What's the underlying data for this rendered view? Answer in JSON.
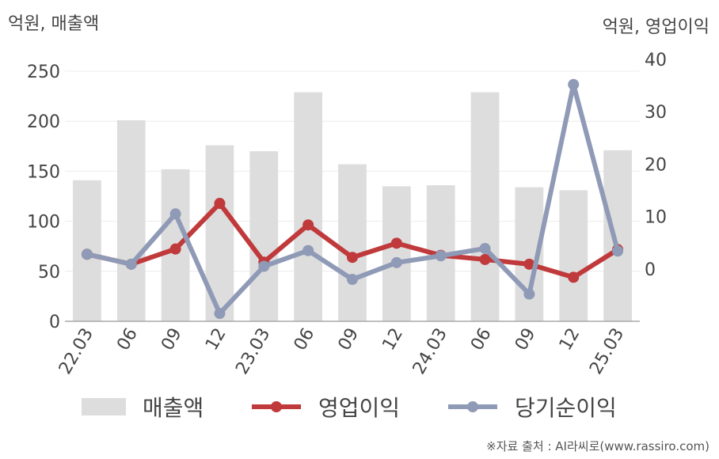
{
  "header": {
    "left_unit": "억원, 매출액",
    "right_unit": "억원, 영업이익"
  },
  "footer": {
    "source": "※자료 출처 : AI라씨로(www.rassiro.com)"
  },
  "colors": {
    "bar": "#dddddd",
    "operating": "#c0393b",
    "net": "#8f9ab6",
    "axis": "#aaaaaa",
    "grid": "#ececec"
  },
  "chart_data": {
    "type": "bar",
    "categories": [
      "22.03",
      "06",
      "09",
      "12",
      "23.03",
      "06",
      "09",
      "12",
      "24.03",
      "06",
      "09",
      "12",
      "25.03"
    ],
    "ylim_left": [
      0,
      250
    ],
    "yticks_left": [
      0,
      50,
      100,
      150,
      200,
      250
    ],
    "ylim_right": [
      -10,
      40
    ],
    "yticks_right": [
      0,
      10,
      20,
      30,
      40
    ],
    "grid": true,
    "legend_position": "bottom",
    "series": [
      {
        "name": "매출액",
        "type": "bar",
        "axis": "left",
        "values": [
          141,
          201,
          152,
          176,
          170,
          229,
          157,
          135,
          136,
          229,
          134,
          131,
          171
        ]
      },
      {
        "name": "영업이익",
        "type": "line",
        "axis": "right",
        "values": [
          2.8,
          0.9,
          3.8,
          12.5,
          1.3,
          8.4,
          2.2,
          4.9,
          2.6,
          1.8,
          0.9,
          -1.6,
          3.7
        ]
      },
      {
        "name": "당기순이익",
        "type": "line",
        "axis": "right",
        "values": [
          2.8,
          0.9,
          10.5,
          -8.5,
          0.5,
          3.5,
          -2.0,
          1.2,
          2.5,
          3.9,
          -4.8,
          35.2,
          3.4
        ]
      }
    ]
  }
}
